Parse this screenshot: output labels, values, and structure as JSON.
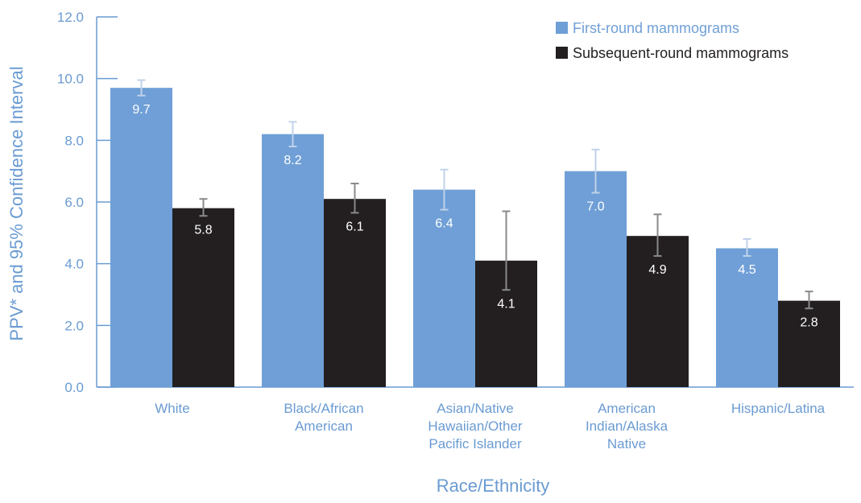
{
  "colors": {
    "series_1": "#6f9fd6",
    "series_2": "#231f20",
    "axis": "#6a9bd2",
    "error_light": "#c0d2ea",
    "error_dark": "#8a8a8a"
  },
  "chart_data": {
    "type": "bar",
    "title": "",
    "xlabel": "Race/Ethnicity",
    "ylabel": "PPV* and 95% Confidence Interval",
    "ylim": [
      0,
      12
    ],
    "yticks": [
      "0.0",
      "2.0",
      "4.0",
      "6.0",
      "8.0",
      "10.0",
      "12.0"
    ],
    "grid": false,
    "legend_position": "top-right",
    "categories": [
      [
        "White"
      ],
      [
        "Black/African",
        "American"
      ],
      [
        "Asian/Native",
        "Hawaiian/Other",
        "Pacific Islander"
      ],
      [
        "American",
        "Indian/Alaska",
        "Native"
      ],
      [
        "Hispanic/Latina"
      ]
    ],
    "series": [
      {
        "name": "First-round mammograms",
        "values": [
          9.7,
          8.2,
          6.4,
          7.0,
          4.5
        ],
        "labels": [
          "9.7",
          "8.2",
          "6.4",
          "7.0",
          "4.5"
        ],
        "ci_low": [
          9.45,
          7.8,
          5.75,
          6.3,
          4.25
        ],
        "ci_high": [
          9.95,
          8.6,
          7.05,
          7.7,
          4.8
        ]
      },
      {
        "name": "Subsequent-round mammograms",
        "values": [
          5.8,
          6.1,
          4.1,
          4.9,
          2.8
        ],
        "labels": [
          "5.8",
          "6.1",
          "4.1",
          "4.9",
          "2.8"
        ],
        "ci_low": [
          5.55,
          5.65,
          3.15,
          4.25,
          2.55
        ],
        "ci_high": [
          6.1,
          6.6,
          5.7,
          5.6,
          3.1
        ]
      }
    ]
  }
}
